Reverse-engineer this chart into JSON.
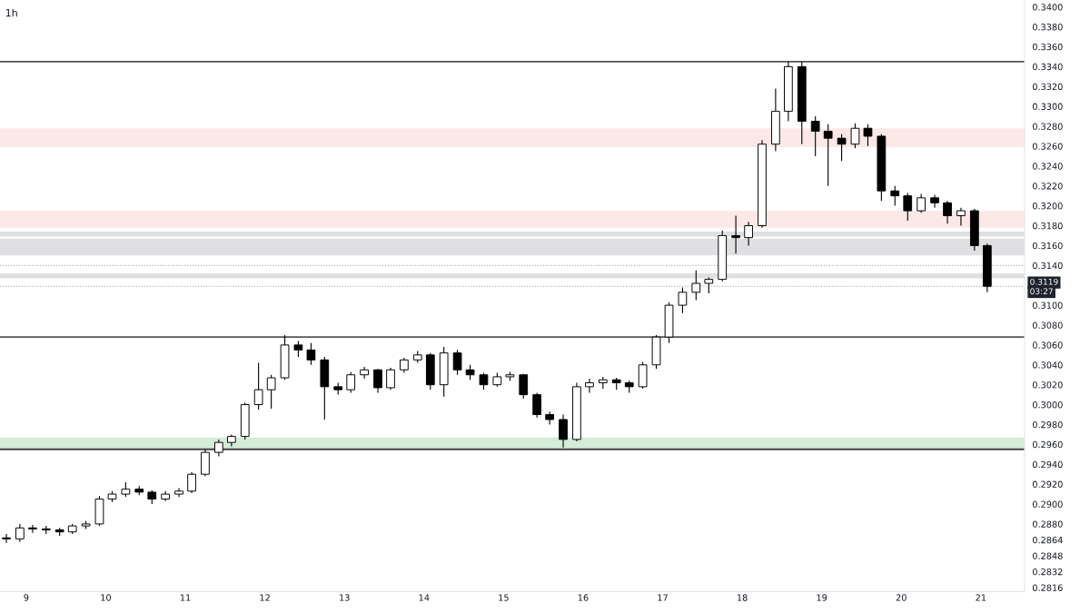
{
  "chart_data": {
    "type": "candlestick",
    "title": "1h",
    "x": [
      8.75,
      8.92,
      9.08,
      9.25,
      9.42,
      9.58,
      9.75,
      9.92,
      10.08,
      10.25,
      10.42,
      10.58,
      10.75,
      10.92,
      11.08,
      11.25,
      11.42,
      11.58,
      11.75,
      11.92,
      12.08,
      12.25,
      12.42,
      12.58,
      12.75,
      12.92,
      13.08,
      13.25,
      13.42,
      13.58,
      13.75,
      13.92,
      14.08,
      14.25,
      14.42,
      14.58,
      14.75,
      14.92,
      15.08,
      15.25,
      15.42,
      15.58,
      15.75,
      15.92,
      16.08,
      16.25,
      16.42,
      16.58,
      16.75,
      16.92,
      17.08,
      17.25,
      17.42,
      17.58,
      17.75,
      17.92,
      18.08,
      18.25,
      18.42,
      18.58,
      18.75,
      18.92,
      19.08,
      19.25,
      19.42,
      19.58,
      19.75,
      19.92,
      20.08,
      20.25,
      20.42,
      20.58,
      20.75,
      20.92,
      21.08
    ],
    "ohlc": [
      [
        0.2866,
        0.287,
        0.2861,
        0.2865
      ],
      [
        0.2865,
        0.288,
        0.2862,
        0.2876
      ],
      [
        0.2876,
        0.2879,
        0.2871,
        0.2875
      ],
      [
        0.2875,
        0.2878,
        0.287,
        0.2874
      ],
      [
        0.2874,
        0.2876,
        0.2868,
        0.2872
      ],
      [
        0.2872,
        0.288,
        0.287,
        0.2878
      ],
      [
        0.2878,
        0.2883,
        0.2875,
        0.288
      ],
      [
        0.288,
        0.2908,
        0.2878,
        0.2905
      ],
      [
        0.2905,
        0.2913,
        0.2902,
        0.291
      ],
      [
        0.291,
        0.2922,
        0.2907,
        0.2915
      ],
      [
        0.2915,
        0.2918,
        0.2909,
        0.2912
      ],
      [
        0.2912,
        0.2914,
        0.29,
        0.2905
      ],
      [
        0.2905,
        0.2913,
        0.2903,
        0.291
      ],
      [
        0.291,
        0.2916,
        0.2907,
        0.2913
      ],
      [
        0.2913,
        0.2932,
        0.2911,
        0.293
      ],
      [
        0.293,
        0.2955,
        0.2928,
        0.2952
      ],
      [
        0.2952,
        0.2965,
        0.2948,
        0.2962
      ],
      [
        0.2962,
        0.297,
        0.2958,
        0.2968
      ],
      [
        0.2968,
        0.3002,
        0.2965,
        0.3
      ],
      [
        0.3,
        0.3042,
        0.2995,
        0.3015
      ],
      [
        0.3015,
        0.303,
        0.2996,
        0.3027
      ],
      [
        0.3027,
        0.307,
        0.3025,
        0.306
      ],
      [
        0.306,
        0.3064,
        0.3048,
        0.3055
      ],
      [
        0.3055,
        0.3062,
        0.304,
        0.3045
      ],
      [
        0.3045,
        0.3048,
        0.2985,
        0.3018
      ],
      [
        0.3018,
        0.3022,
        0.301,
        0.3015
      ],
      [
        0.3015,
        0.3033,
        0.3012,
        0.303
      ],
      [
        0.303,
        0.3038,
        0.3026,
        0.3035
      ],
      [
        0.3035,
        0.3036,
        0.3012,
        0.3017
      ],
      [
        0.3017,
        0.3037,
        0.3015,
        0.3035
      ],
      [
        0.3035,
        0.3047,
        0.3032,
        0.3045
      ],
      [
        0.3045,
        0.3054,
        0.3042,
        0.305
      ],
      [
        0.305,
        0.3052,
        0.3015,
        0.302
      ],
      [
        0.302,
        0.3058,
        0.3008,
        0.3052
      ],
      [
        0.3052,
        0.3055,
        0.303,
        0.3035
      ],
      [
        0.3035,
        0.304,
        0.3025,
        0.303
      ],
      [
        0.303,
        0.3032,
        0.3015,
        0.302
      ],
      [
        0.302,
        0.3032,
        0.3018,
        0.3028
      ],
      [
        0.3028,
        0.3033,
        0.3024,
        0.303
      ],
      [
        0.303,
        0.3031,
        0.3006,
        0.301
      ],
      [
        0.301,
        0.3012,
        0.2987,
        0.299
      ],
      [
        0.299,
        0.2993,
        0.298,
        0.2985
      ],
      [
        0.2985,
        0.299,
        0.2957,
        0.2965
      ],
      [
        0.2965,
        0.3022,
        0.2963,
        0.3018
      ],
      [
        0.3018,
        0.3026,
        0.3012,
        0.3022
      ],
      [
        0.3022,
        0.3028,
        0.3016,
        0.3025
      ],
      [
        0.3025,
        0.3027,
        0.3015,
        0.3022
      ],
      [
        0.3022,
        0.3024,
        0.3012,
        0.3018
      ],
      [
        0.3018,
        0.3043,
        0.3016,
        0.304
      ],
      [
        0.304,
        0.307,
        0.3036,
        0.3068
      ],
      [
        0.3068,
        0.3103,
        0.3062,
        0.31
      ],
      [
        0.31,
        0.3118,
        0.3092,
        0.3113
      ],
      [
        0.3113,
        0.3135,
        0.3105,
        0.3122
      ],
      [
        0.3122,
        0.3128,
        0.3112,
        0.3126
      ],
      [
        0.3126,
        0.3175,
        0.3124,
        0.317
      ],
      [
        0.317,
        0.319,
        0.3152,
        0.3168
      ],
      [
        0.3168,
        0.3184,
        0.316,
        0.318
      ],
      [
        0.318,
        0.3266,
        0.3178,
        0.3262
      ],
      [
        0.3262,
        0.3318,
        0.3255,
        0.3295
      ],
      [
        0.3295,
        0.3345,
        0.3285,
        0.334
      ],
      [
        0.334,
        0.3345,
        0.3262,
        0.3285
      ],
      [
        0.3285,
        0.329,
        0.325,
        0.3275
      ],
      [
        0.3275,
        0.3282,
        0.322,
        0.3268
      ],
      [
        0.3268,
        0.3272,
        0.3245,
        0.3262
      ],
      [
        0.3262,
        0.3283,
        0.3258,
        0.3278
      ],
      [
        0.3278,
        0.3282,
        0.326,
        0.327
      ],
      [
        0.327,
        0.3272,
        0.3205,
        0.3215
      ],
      [
        0.3215,
        0.322,
        0.32,
        0.321
      ],
      [
        0.321,
        0.3213,
        0.3185,
        0.3195
      ],
      [
        0.3195,
        0.3212,
        0.3193,
        0.3208
      ],
      [
        0.3208,
        0.3211,
        0.3198,
        0.3203
      ],
      [
        0.3203,
        0.3205,
        0.3182,
        0.319
      ],
      [
        0.319,
        0.3198,
        0.318,
        0.3195
      ],
      [
        0.3195,
        0.3197,
        0.3155,
        0.316
      ],
      [
        0.316,
        0.3162,
        0.3113,
        0.3119
      ]
    ],
    "colors": [
      "#000000",
      "#ffffff",
      "#000000",
      "#000000",
      "#000000",
      "#ffffff",
      "#ffffff",
      "#ffffff",
      "#ffffff",
      "#ffffff",
      "#000000",
      "#000000",
      "#ffffff",
      "#ffffff",
      "#ffffff",
      "#ffffff",
      "#ffffff",
      "#ffffff",
      "#ffffff",
      "#ffffff",
      "#ffffff",
      "#ffffff",
      "#000000",
      "#000000",
      "#000000",
      "#000000",
      "#ffffff",
      "#ffffff",
      "#000000",
      "#ffffff",
      "#ffffff",
      "#ffffff",
      "#000000",
      "#ffffff",
      "#000000",
      "#000000",
      "#000000",
      "#ffffff",
      "#ffffff",
      "#000000",
      "#000000",
      "#000000",
      "#000000",
      "#ffffff",
      "#ffffff",
      "#ffffff",
      "#000000",
      "#000000",
      "#ffffff",
      "#ffffff",
      "#ffffff",
      "#ffffff",
      "#ffffff",
      "#ffffff",
      "#ffffff",
      "#000000",
      "#ffffff",
      "#ffffff",
      "#ffffff",
      "#ffffff",
      "#000000",
      "#000000",
      "#000000",
      "#000000",
      "#ffffff",
      "#000000",
      "#000000",
      "#000000",
      "#000000",
      "#ffffff",
      "#000000",
      "#000000",
      "#ffffff",
      "#000000",
      "#000000"
    ],
    "xlim": [
      8.67,
      21.55
    ],
    "xticks": [
      9,
      10,
      11,
      12,
      13,
      14,
      15,
      16,
      17,
      18,
      19,
      20,
      21
    ],
    "ylim": [
      0.2812,
      0.3407
    ],
    "yticks": [
      {
        "value": 0.2816,
        "label": "0.2816"
      },
      {
        "value": 0.2832,
        "label": "0.2832"
      },
      {
        "value": 0.2848,
        "label": "0.2848"
      },
      {
        "value": 0.2864,
        "label": "0.2864"
      },
      {
        "value": 0.288,
        "label": "0.2880"
      },
      {
        "value": 0.29,
        "label": "0.2900"
      },
      {
        "value": 0.292,
        "label": "0.2920"
      },
      {
        "value": 0.294,
        "label": "0.2940"
      },
      {
        "value": 0.296,
        "label": "0.2960"
      },
      {
        "value": 0.298,
        "label": "0.2980"
      },
      {
        "value": 0.3,
        "label": "0.3000"
      },
      {
        "value": 0.302,
        "label": "0.3020"
      },
      {
        "value": 0.304,
        "label": "0.3040"
      },
      {
        "value": 0.306,
        "label": "0.3060"
      },
      {
        "value": 0.308,
        "label": "0.3080"
      },
      {
        "value": 0.31,
        "label": "0.3100"
      },
      {
        "value": 0.314,
        "label": "0.3140"
      },
      {
        "value": 0.316,
        "label": "0.3160"
      },
      {
        "value": 0.318,
        "label": "0.3180"
      },
      {
        "value": 0.32,
        "label": "0.3200"
      },
      {
        "value": 0.322,
        "label": "0.3220"
      },
      {
        "value": 0.324,
        "label": "0.3240"
      },
      {
        "value": 0.326,
        "label": "0.3260"
      },
      {
        "value": 0.328,
        "label": "0.3280"
      },
      {
        "value": 0.33,
        "label": "0.3300"
      },
      {
        "value": 0.332,
        "label": "0.3320"
      },
      {
        "value": 0.334,
        "label": "0.3340"
      },
      {
        "value": 0.336,
        "label": "0.3360"
      },
      {
        "value": 0.338,
        "label": "0.3380"
      },
      {
        "value": 0.34,
        "label": "0.3400"
      }
    ],
    "ref_lines": [
      {
        "axis": "y",
        "value": 0.3345,
        "color": "#555555",
        "line_style": "solid"
      },
      {
        "axis": "y",
        "value": 0.3068,
        "color": "#555555",
        "line_style": "solid"
      },
      {
        "axis": "y",
        "value": 0.2955,
        "color": "#444444",
        "line_style": "solid"
      },
      {
        "axis": "y",
        "value": 0.314,
        "color": "#9a9a9a",
        "line_style": "dotted"
      },
      {
        "axis": "y",
        "value": 0.3119,
        "color": "#9a9a9a",
        "line_style": "dotted",
        "label": "0.3119"
      }
    ],
    "bands": [
      {
        "axis": "y",
        "from": 0.3259,
        "to": 0.3278,
        "color": "#fde8e8"
      },
      {
        "axis": "y",
        "from": 0.3178,
        "to": 0.3195,
        "color": "#fde8e8"
      },
      {
        "axis": "y",
        "from": 0.3169,
        "to": 0.3174,
        "color": "#e0e0e3"
      },
      {
        "axis": "y",
        "from": 0.315,
        "to": 0.3167,
        "color": "#e0e0e3"
      },
      {
        "axis": "y",
        "from": 0.3127,
        "to": 0.3132,
        "color": "#e0e0e3"
      },
      {
        "axis": "y",
        "from": 0.2955,
        "to": 0.2967,
        "color": "#d5ecd7"
      }
    ],
    "annotations": [
      "03:27"
    ],
    "grid": false,
    "legend": false
  }
}
